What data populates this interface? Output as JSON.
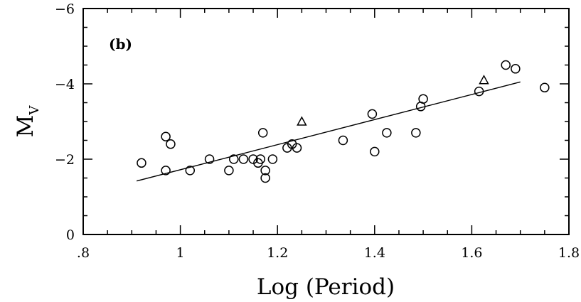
{
  "chart_data": {
    "type": "scatter",
    "panel_label": "(b)",
    "xlabel": "Log (Period)",
    "ylabel_main": "M",
    "ylabel_sub": "V",
    "xlim": [
      0.8,
      1.8
    ],
    "ylim": [
      0,
      -6
    ],
    "y_inverted": true,
    "x_ticks": [
      {
        "value": 0.8,
        "label": ".8"
      },
      {
        "value": 1.0,
        "label": "1"
      },
      {
        "value": 1.2,
        "label": "1.2"
      },
      {
        "value": 1.4,
        "label": "1.4"
      },
      {
        "value": 1.6,
        "label": "1.6"
      },
      {
        "value": 1.8,
        "label": "1.8"
      }
    ],
    "y_ticks": [
      {
        "value": 0,
        "label": "0"
      },
      {
        "value": -2,
        "label": "−2"
      },
      {
        "value": -4,
        "label": "−4"
      },
      {
        "value": -6,
        "label": "−6"
      }
    ],
    "grid": false,
    "series": [
      {
        "marker": "circle",
        "points": [
          {
            "x": 0.92,
            "y": -1.9
          },
          {
            "x": 0.97,
            "y": -2.6
          },
          {
            "x": 0.98,
            "y": -2.4
          },
          {
            "x": 0.97,
            "y": -1.7
          },
          {
            "x": 1.02,
            "y": -1.7
          },
          {
            "x": 1.06,
            "y": -2.0
          },
          {
            "x": 1.1,
            "y": -1.7
          },
          {
            "x": 1.11,
            "y": -2.0
          },
          {
            "x": 1.13,
            "y": -2.0
          },
          {
            "x": 1.15,
            "y": -2.0
          },
          {
            "x": 1.16,
            "y": -1.9
          },
          {
            "x": 1.165,
            "y": -2.0
          },
          {
            "x": 1.17,
            "y": -2.7
          },
          {
            "x": 1.175,
            "y": -1.7
          },
          {
            "x": 1.175,
            "y": -1.5
          },
          {
            "x": 1.19,
            "y": -2.0
          },
          {
            "x": 1.22,
            "y": -2.3
          },
          {
            "x": 1.23,
            "y": -2.4
          },
          {
            "x": 1.24,
            "y": -2.3
          },
          {
            "x": 1.335,
            "y": -2.5
          },
          {
            "x": 1.395,
            "y": -3.2
          },
          {
            "x": 1.4,
            "y": -2.2
          },
          {
            "x": 1.425,
            "y": -2.7
          },
          {
            "x": 1.485,
            "y": -2.7
          },
          {
            "x": 1.495,
            "y": -3.4
          },
          {
            "x": 1.5,
            "y": -3.6
          },
          {
            "x": 1.615,
            "y": -3.8
          },
          {
            "x": 1.67,
            "y": -4.5
          },
          {
            "x": 1.69,
            "y": -4.4
          },
          {
            "x": 1.75,
            "y": -3.9
          }
        ]
      },
      {
        "marker": "triangle",
        "points": [
          {
            "x": 1.25,
            "y": -3.0
          },
          {
            "x": 1.625,
            "y": -4.1
          }
        ]
      }
    ],
    "fit_line": {
      "x": [
        0.91,
        1.7
      ],
      "y": [
        -1.42,
        -4.05
      ]
    }
  }
}
